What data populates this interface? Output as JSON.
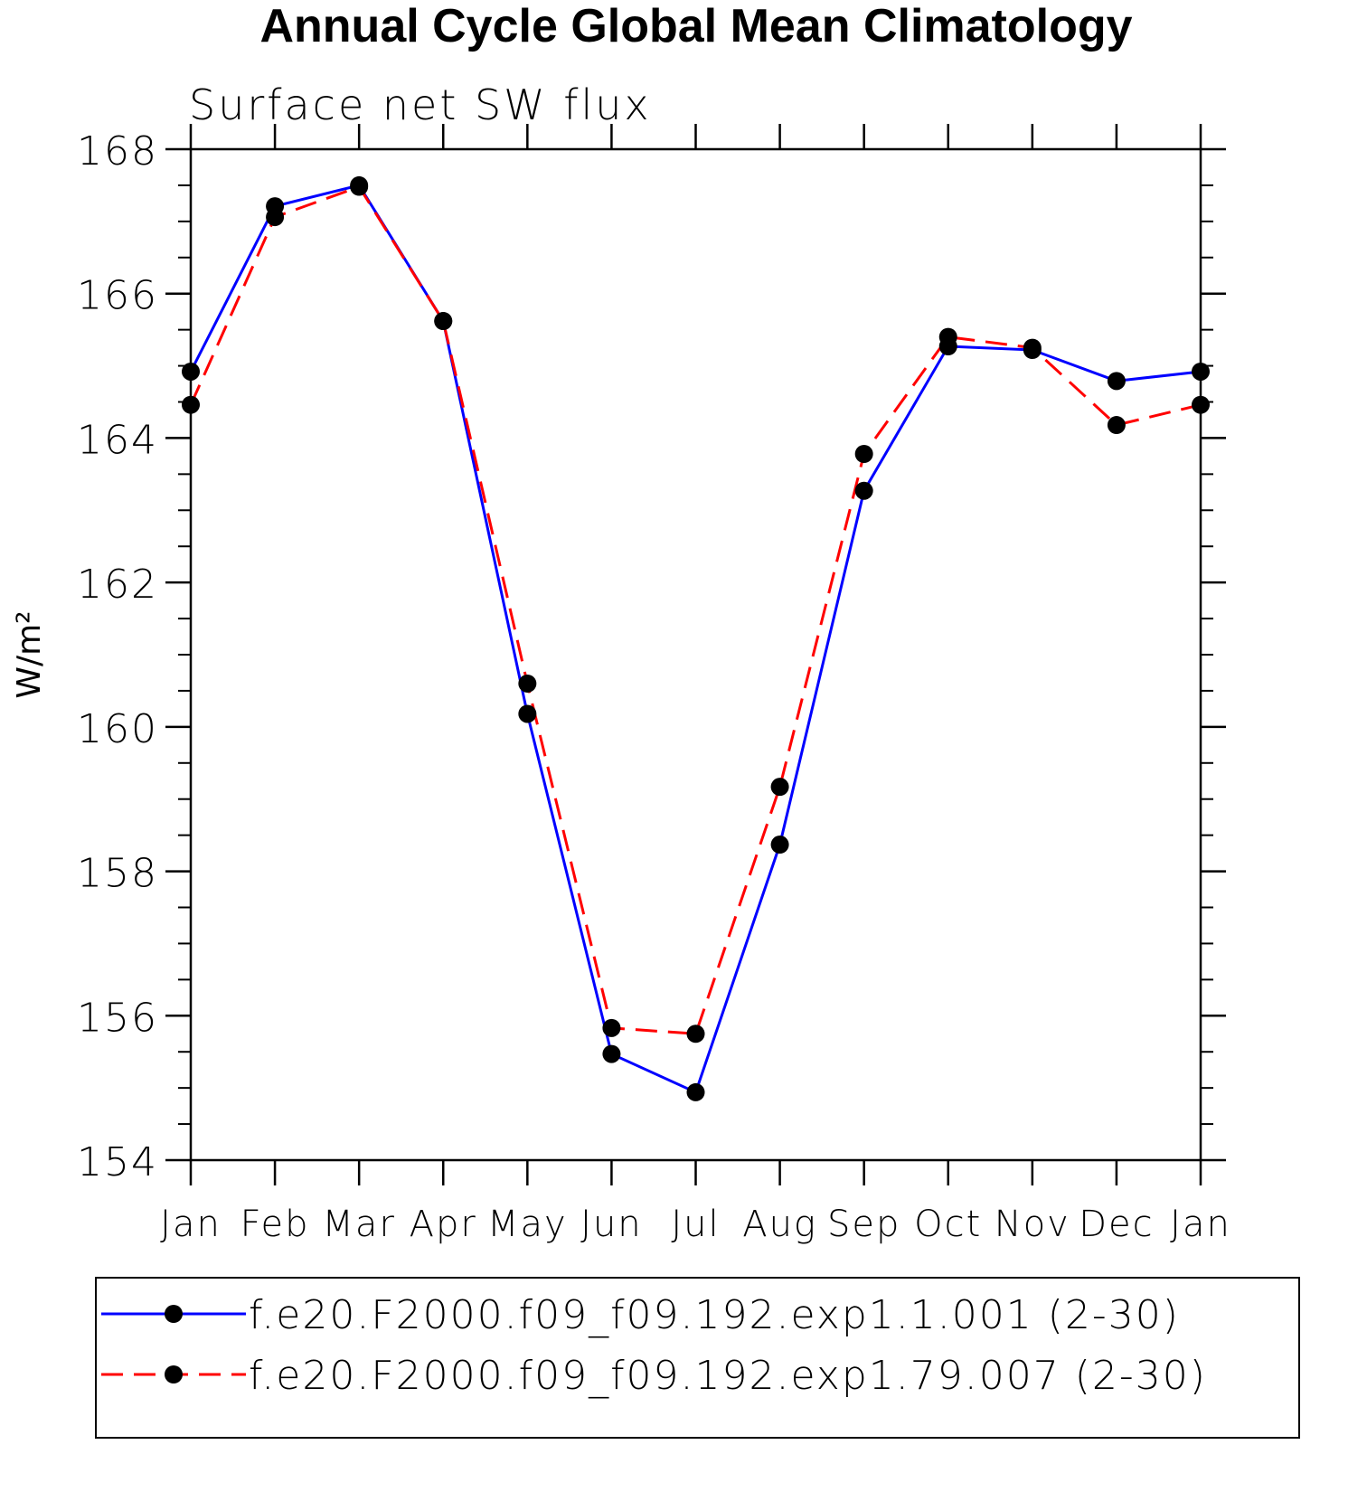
{
  "chart_data": {
    "type": "line",
    "title": "Annual Cycle Global Mean Climatology",
    "subtitle": "Surface net SW flux",
    "y_label": "W/m²",
    "categories": [
      "Jan",
      "Feb",
      "Mar",
      "Apr",
      "May",
      "Jun",
      "Jul",
      "Aug",
      "Sep",
      "Oct",
      "Nov",
      "Dec",
      "Jan"
    ],
    "series": [
      {
        "name": "f.e20.F2000.f09_f09.192.exp1.1.001 (2-30)",
        "color": "#0000ff",
        "dash": false,
        "values": [
          164.92,
          167.21,
          167.5,
          165.62,
          160.18,
          155.47,
          154.94,
          158.37,
          163.27,
          165.27,
          165.22,
          164.79,
          164.92
        ]
      },
      {
        "name": "f.e20.F2000.f09_f09.192.exp1.79.007 (2-30)",
        "color": "#ff0000",
        "dash": true,
        "values": [
          164.46,
          167.06,
          167.48,
          165.62,
          160.6,
          155.83,
          155.75,
          159.17,
          163.78,
          165.4,
          165.25,
          164.18,
          164.46
        ]
      }
    ],
    "ylim": [
      154,
      168
    ],
    "yticks": [
      154,
      156,
      158,
      160,
      162,
      164,
      166,
      168
    ],
    "grid": false
  }
}
